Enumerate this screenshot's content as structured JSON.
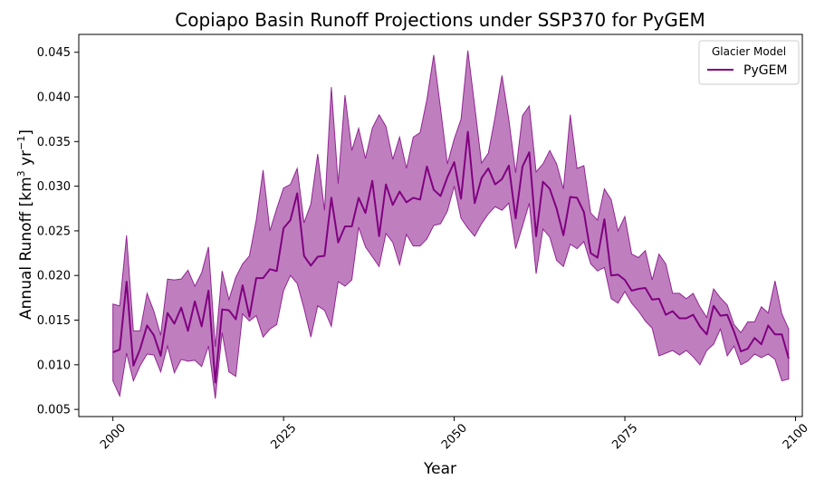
{
  "chart_data": {
    "type": "line",
    "title": "Copiapo Basin Runoff Projections under SSP370 for PyGEM",
    "xlabel": "Year",
    "ylabel": "Annual Runoff [km",
    "ylabel_sup1": "3",
    "ylabel_mid": " yr",
    "ylabel_sup2": "−1",
    "ylabel_end": "]",
    "xlim": [
      1995,
      2101
    ],
    "ylim": [
      0.0042,
      0.047
    ],
    "xticks": [
      2000,
      2025,
      2050,
      2075,
      2100
    ],
    "xtick_labels": [
      "2000",
      "2025",
      "2050",
      "2075",
      "2100"
    ],
    "yticks": [
      0.005,
      0.01,
      0.015,
      0.02,
      0.025,
      0.03,
      0.035,
      0.04,
      0.045
    ],
    "ytick_labels": [
      "0.005",
      "0.010",
      "0.015",
      "0.020",
      "0.025",
      "0.030",
      "0.035",
      "0.040",
      "0.045"
    ],
    "legend": {
      "title": "Glacier Model",
      "placement": "top-right"
    },
    "grid": false,
    "series": [
      {
        "name": "PyGEM",
        "color": "#800080",
        "band_color": "#800080",
        "band_opacity": 0.5,
        "x": [
          2000,
          2001,
          2002,
          2003,
          2004,
          2005,
          2006,
          2007,
          2008,
          2009,
          2010,
          2011,
          2012,
          2013,
          2014,
          2015,
          2016,
          2017,
          2018,
          2019,
          2020,
          2021,
          2022,
          2023,
          2024,
          2025,
          2026,
          2027,
          2028,
          2029,
          2030,
          2031,
          2032,
          2033,
          2034,
          2035,
          2036,
          2037,
          2038,
          2039,
          2040,
          2041,
          2042,
          2043,
          2044,
          2045,
          2046,
          2047,
          2048,
          2049,
          2050,
          2051,
          2052,
          2053,
          2054,
          2055,
          2056,
          2057,
          2058,
          2059,
          2060,
          2061,
          2062,
          2063,
          2064,
          2065,
          2066,
          2067,
          2068,
          2069,
          2070,
          2071,
          2072,
          2073,
          2074,
          2075,
          2076,
          2077,
          2078,
          2079,
          2080,
          2081,
          2082,
          2083,
          2084,
          2085,
          2086,
          2087,
          2088,
          2089,
          2090,
          2091,
          2092,
          2093,
          2094,
          2095,
          2096,
          2097,
          2098,
          2099
        ],
        "mean": [
          0.0114,
          0.0117,
          0.0193,
          0.0099,
          0.0118,
          0.0144,
          0.0133,
          0.011,
          0.0158,
          0.0146,
          0.0164,
          0.0138,
          0.0171,
          0.0143,
          0.0183,
          0.008,
          0.0162,
          0.0161,
          0.0151,
          0.0189,
          0.0154,
          0.0197,
          0.0197,
          0.0207,
          0.0205,
          0.0253,
          0.0262,
          0.0292,
          0.0222,
          0.0211,
          0.0221,
          0.0222,
          0.0287,
          0.0237,
          0.0255,
          0.0255,
          0.0287,
          0.027,
          0.0306,
          0.0244,
          0.0302,
          0.0279,
          0.0294,
          0.0282,
          0.0287,
          0.0285,
          0.0322,
          0.0296,
          0.0289,
          0.031,
          0.0327,
          0.0286,
          0.0361,
          0.0281,
          0.0309,
          0.032,
          0.0302,
          0.0308,
          0.0323,
          0.0264,
          0.0322,
          0.0338,
          0.0244,
          0.0305,
          0.0297,
          0.0275,
          0.0245,
          0.0288,
          0.0287,
          0.0271,
          0.0225,
          0.022,
          0.0263,
          0.02,
          0.0201,
          0.0195,
          0.0183,
          0.0185,
          0.0186,
          0.0173,
          0.0174,
          0.0156,
          0.016,
          0.0152,
          0.0152,
          0.0156,
          0.0143,
          0.0134,
          0.0166,
          0.0155,
          0.0156,
          0.0137,
          0.0115,
          0.0118,
          0.013,
          0.0123,
          0.0144,
          0.0134,
          0.0134,
          0.0107
        ],
        "upper": [
          0.0168,
          0.0166,
          0.0245,
          0.0138,
          0.0138,
          0.018,
          0.016,
          0.0133,
          0.0196,
          0.0195,
          0.0196,
          0.0206,
          0.0188,
          0.0203,
          0.0232,
          0.012,
          0.0205,
          0.0173,
          0.0198,
          0.0213,
          0.0222,
          0.0262,
          0.0318,
          0.025,
          0.0275,
          0.0298,
          0.0302,
          0.032,
          0.0259,
          0.028,
          0.0336,
          0.0273,
          0.0411,
          0.0303,
          0.0402,
          0.034,
          0.0365,
          0.0331,
          0.0365,
          0.038,
          0.0367,
          0.033,
          0.0355,
          0.032,
          0.0355,
          0.036,
          0.0397,
          0.0447,
          0.0387,
          0.0325,
          0.0353,
          0.0375,
          0.0452,
          0.039,
          0.0326,
          0.0337,
          0.0378,
          0.0424,
          0.0375,
          0.0315,
          0.0379,
          0.039,
          0.0316,
          0.0325,
          0.034,
          0.0325,
          0.0297,
          0.038,
          0.032,
          0.0323,
          0.027,
          0.0262,
          0.0297,
          0.0285,
          0.025,
          0.0266,
          0.0224,
          0.022,
          0.0228,
          0.0195,
          0.0224,
          0.0213,
          0.018,
          0.018,
          0.0174,
          0.018,
          0.0165,
          0.0153,
          0.0185,
          0.0175,
          0.0167,
          0.0145,
          0.0136,
          0.0148,
          0.0148,
          0.0165,
          0.0158,
          0.0194,
          0.0157,
          0.014
        ],
        "lower": [
          0.0082,
          0.0065,
          0.0113,
          0.0082,
          0.0099,
          0.0112,
          0.0111,
          0.0092,
          0.0121,
          0.0091,
          0.0106,
          0.0104,
          0.0105,
          0.0098,
          0.0121,
          0.0062,
          0.0136,
          0.0092,
          0.0087,
          0.0157,
          0.0149,
          0.0155,
          0.0131,
          0.014,
          0.0145,
          0.0183,
          0.02,
          0.0191,
          0.0163,
          0.0131,
          0.0166,
          0.0161,
          0.0143,
          0.0193,
          0.0188,
          0.0195,
          0.0254,
          0.0232,
          0.0221,
          0.021,
          0.0247,
          0.0237,
          0.0212,
          0.0246,
          0.0233,
          0.0233,
          0.0241,
          0.0256,
          0.0258,
          0.0272,
          0.03,
          0.0264,
          0.0253,
          0.0244,
          0.0258,
          0.0269,
          0.0277,
          0.0273,
          0.0281,
          0.023,
          0.0255,
          0.0281,
          0.0202,
          0.0252,
          0.0243,
          0.0217,
          0.021,
          0.0235,
          0.023,
          0.0238,
          0.0213,
          0.0205,
          0.0209,
          0.0174,
          0.0169,
          0.0182,
          0.0169,
          0.016,
          0.0149,
          0.0141,
          0.011,
          0.0113,
          0.0116,
          0.0111,
          0.0116,
          0.0109,
          0.01,
          0.0116,
          0.0123,
          0.014,
          0.011,
          0.0121,
          0.01,
          0.0104,
          0.0112,
          0.0108,
          0.0112,
          0.0106,
          0.0082,
          0.0084
        ]
      }
    ]
  }
}
